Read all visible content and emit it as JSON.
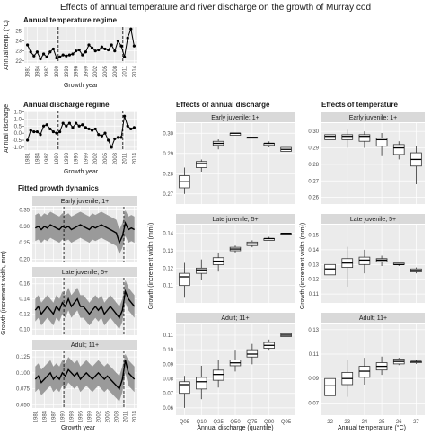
{
  "figure_title": "Effects of annual temperature and river discharge on the growth of Murray cod",
  "colors": {
    "panel_bg": "#ebebeb",
    "grid_major": "#ffffff",
    "grid_minor": "#f5f5f5",
    "strip_bg": "#d9d9d9",
    "ribbon": "#9a9a9a",
    "line": "#000000",
    "box_fill": "#ffffff",
    "box_line": "#333333"
  },
  "chart_data": [
    {
      "id": "temp",
      "type": "line",
      "title": "Annual temperature regime",
      "xlabel": "Growth year",
      "ylabel": "Annual temp. (°C)",
      "x_ticks": [
        "1981",
        "1984",
        "1987",
        "1990",
        "1993",
        "1996",
        "1999",
        "2002",
        "2005",
        "2008",
        "2011",
        "2014"
      ],
      "xlim": [
        1980,
        2015
      ],
      "y_ticks": [
        "22",
        "23",
        "24",
        "25"
      ],
      "ylim": [
        21.8,
        25.4
      ],
      "vlines": [
        1990.5,
        2010.5
      ],
      "x": [
        1981,
        1982,
        1983,
        1984,
        1985,
        1986,
        1987,
        1988,
        1989,
        1990,
        1991,
        1992,
        1993,
        1994,
        1995,
        1996,
        1997,
        1998,
        1999,
        2000,
        2001,
        2002,
        2003,
        2004,
        2005,
        2006,
        2007,
        2008,
        2009,
        2010,
        2011,
        2012,
        2013,
        2014
      ],
      "y": [
        23.6,
        22.9,
        22.5,
        22.9,
        22.2,
        22.7,
        22.4,
        22.9,
        23.2,
        22.3,
        22.4,
        22.6,
        22.5,
        22.6,
        22.7,
        23.0,
        23.1,
        22.6,
        22.9,
        23.6,
        23.3,
        23.0,
        23.1,
        23.4,
        23.2,
        23.1,
        23.6,
        23.0,
        24.0,
        23.5,
        22.4,
        24.3,
        25.2,
        23.5
      ]
    },
    {
      "id": "disch",
      "type": "line",
      "title": "Annual discharge regime",
      "xlabel": "Growth year",
      "ylabel": "Annual discharge",
      "x_ticks": [
        "1981",
        "1984",
        "1987",
        "1990",
        "1993",
        "1996",
        "1999",
        "2002",
        "2005",
        "2008",
        "2011",
        "2014"
      ],
      "xlim": [
        1980,
        2015
      ],
      "y_ticks": [
        "-1.0",
        "-0.5",
        "0.0",
        "0.5",
        "1.0",
        "1.5"
      ],
      "ylim": [
        -1.2,
        1.6
      ],
      "vlines": [
        1990.5,
        2010.5
      ],
      "x": [
        1981,
        1982,
        1983,
        1984,
        1985,
        1986,
        1987,
        1988,
        1989,
        1990,
        1991,
        1992,
        1993,
        1994,
        1995,
        1996,
        1997,
        1998,
        1999,
        2000,
        2001,
        2002,
        2003,
        2004,
        2005,
        2006,
        2007,
        2008,
        2009,
        2010,
        2011,
        2012,
        2013,
        2014
      ],
      "y": [
        -0.5,
        0.2,
        0.1,
        0.1,
        -0.1,
        0.5,
        0.6,
        0.3,
        0.1,
        0.0,
        0.1,
        0.7,
        0.5,
        0.7,
        0.4,
        0.7,
        0.5,
        0.6,
        0.4,
        0.3,
        0.2,
        0.3,
        -0.1,
        -0.2,
        0.0,
        -0.5,
        -1.0,
        -0.4,
        -0.3,
        -0.3,
        1.2,
        0.5,
        0.3,
        0.4
      ]
    },
    {
      "id": "fitted",
      "type": "line",
      "title": "Fitted growth dynamics",
      "xlabel": "Growth year",
      "ylabel": "Growth (increment width, mm)",
      "x_ticks": [
        "1981",
        "1984",
        "1987",
        "1990",
        "1993",
        "1996",
        "1999",
        "2002",
        "2005",
        "2008",
        "2011",
        "2014"
      ],
      "xlim": [
        1980,
        2015
      ],
      "vlines": [
        1990.5,
        2010.5
      ],
      "panels": [
        {
          "strip": "Early juvenile; 1+",
          "y_ticks": [
            "0.20",
            "0.25",
            "0.30",
            "0.35"
          ],
          "ylim": [
            0.19,
            0.36
          ],
          "mean": [
            0.295,
            0.3,
            0.29,
            0.3,
            0.295,
            0.305,
            0.3,
            0.295,
            0.29,
            0.3,
            0.295,
            0.3,
            0.29,
            0.295,
            0.3,
            0.305,
            0.3,
            0.295,
            0.29,
            0.3,
            0.295,
            0.3,
            0.305,
            0.3,
            0.295,
            0.29,
            0.285,
            0.28,
            0.25,
            0.27,
            0.31,
            0.29,
            0.295,
            0.29
          ],
          "lower": [
            0.255,
            0.26,
            0.25,
            0.26,
            0.255,
            0.265,
            0.26,
            0.255,
            0.25,
            0.26,
            0.255,
            0.26,
            0.25,
            0.255,
            0.26,
            0.265,
            0.26,
            0.255,
            0.25,
            0.26,
            0.255,
            0.26,
            0.265,
            0.26,
            0.255,
            0.25,
            0.245,
            0.24,
            0.215,
            0.235,
            0.27,
            0.25,
            0.255,
            0.25
          ],
          "upper": [
            0.335,
            0.34,
            0.33,
            0.34,
            0.335,
            0.345,
            0.34,
            0.335,
            0.33,
            0.34,
            0.335,
            0.34,
            0.33,
            0.335,
            0.34,
            0.345,
            0.34,
            0.335,
            0.33,
            0.34,
            0.335,
            0.34,
            0.345,
            0.34,
            0.335,
            0.33,
            0.325,
            0.32,
            0.29,
            0.31,
            0.35,
            0.33,
            0.335,
            0.33
          ]
        },
        {
          "strip": "Late juvenile; 5+",
          "y_ticks": [
            "0.10",
            "0.12",
            "0.14",
            "0.16"
          ],
          "ylim": [
            0.092,
            0.168
          ],
          "mean": [
            0.125,
            0.13,
            0.12,
            0.125,
            0.13,
            0.125,
            0.12,
            0.13,
            0.125,
            0.135,
            0.13,
            0.14,
            0.13,
            0.135,
            0.14,
            0.13,
            0.13,
            0.125,
            0.12,
            0.125,
            0.13,
            0.125,
            0.13,
            0.12,
            0.125,
            0.13,
            0.125,
            0.12,
            0.115,
            0.125,
            0.15,
            0.14,
            0.135,
            0.13
          ],
          "lower": [
            0.11,
            0.115,
            0.105,
            0.11,
            0.115,
            0.11,
            0.105,
            0.115,
            0.11,
            0.12,
            0.115,
            0.125,
            0.115,
            0.12,
            0.125,
            0.115,
            0.115,
            0.11,
            0.105,
            0.11,
            0.115,
            0.11,
            0.115,
            0.105,
            0.11,
            0.115,
            0.11,
            0.105,
            0.1,
            0.11,
            0.135,
            0.125,
            0.12,
            0.115
          ],
          "upper": [
            0.14,
            0.145,
            0.135,
            0.14,
            0.145,
            0.14,
            0.135,
            0.145,
            0.14,
            0.15,
            0.145,
            0.155,
            0.145,
            0.15,
            0.155,
            0.145,
            0.145,
            0.14,
            0.135,
            0.14,
            0.145,
            0.14,
            0.145,
            0.135,
            0.14,
            0.145,
            0.14,
            0.135,
            0.13,
            0.14,
            0.165,
            0.155,
            0.15,
            0.145
          ]
        },
        {
          "strip": "Adult; 11+",
          "y_ticks": [
            "0.050",
            "0.075",
            "0.100",
            "0.125"
          ],
          "ylim": [
            0.045,
            0.135
          ],
          "mean": [
            0.09,
            0.095,
            0.085,
            0.09,
            0.095,
            0.1,
            0.09,
            0.095,
            0.09,
            0.1,
            0.095,
            0.105,
            0.1,
            0.095,
            0.1,
            0.09,
            0.095,
            0.1,
            0.095,
            0.09,
            0.095,
            0.1,
            0.095,
            0.09,
            0.095,
            0.09,
            0.085,
            0.08,
            0.075,
            0.09,
            0.12,
            0.1,
            0.095,
            0.09
          ],
          "lower": [
            0.07,
            0.075,
            0.065,
            0.07,
            0.075,
            0.08,
            0.07,
            0.075,
            0.07,
            0.08,
            0.075,
            0.085,
            0.08,
            0.075,
            0.08,
            0.07,
            0.075,
            0.08,
            0.075,
            0.07,
            0.075,
            0.08,
            0.075,
            0.07,
            0.075,
            0.07,
            0.065,
            0.06,
            0.055,
            0.07,
            0.1,
            0.08,
            0.075,
            0.07
          ],
          "upper": [
            0.11,
            0.115,
            0.105,
            0.11,
            0.115,
            0.12,
            0.11,
            0.115,
            0.11,
            0.12,
            0.115,
            0.125,
            0.12,
            0.115,
            0.12,
            0.11,
            0.115,
            0.12,
            0.115,
            0.11,
            0.115,
            0.12,
            0.115,
            0.11,
            0.115,
            0.11,
            0.105,
            0.1,
            0.095,
            0.11,
            0.13,
            0.12,
            0.115,
            0.11
          ]
        }
      ]
    },
    {
      "id": "dischbox",
      "type": "box",
      "title": "Effects of annual discharge",
      "xlabel": "Annual discharge (quantile)",
      "ylabel": "Growth (increment width (mm))",
      "categories": [
        "Q05",
        "Q10",
        "Q25",
        "Q50",
        "Q75",
        "Q90",
        "Q95"
      ],
      "panels": [
        {
          "strip": "Early juvenile; 1+",
          "y_ticks": [
            "0.27",
            "0.28",
            "0.29",
            "0.30"
          ],
          "ylim": [
            0.265,
            0.305
          ],
          "boxes": [
            [
              0.27,
              0.273,
              0.276,
              0.279,
              0.283
            ],
            [
              0.281,
              0.283,
              0.285,
              0.286,
              0.287
            ],
            [
              0.292,
              0.294,
              0.295,
              0.296,
              0.297
            ],
            [
              0.299,
              0.299,
              0.3,
              0.3,
              0.3
            ],
            [
              0.298,
              0.298,
              0.298,
              0.298,
              0.298
            ],
            [
              0.293,
              0.294,
              0.295,
              0.295,
              0.296
            ],
            [
              0.288,
              0.291,
              0.292,
              0.293,
              0.294
            ]
          ]
        },
        {
          "strip": "Late juvenile; 5+",
          "y_ticks": [
            "0.11",
            "0.12",
            "0.13",
            "0.14"
          ],
          "ylim": [
            0.1,
            0.145
          ],
          "boxes": [
            [
              0.103,
              0.11,
              0.115,
              0.117,
              0.123
            ],
            [
              0.113,
              0.117,
              0.119,
              0.12,
              0.125
            ],
            [
              0.118,
              0.122,
              0.124,
              0.126,
              0.129
            ],
            [
              0.129,
              0.13,
              0.131,
              0.132,
              0.133
            ],
            [
              0.132,
              0.133,
              0.134,
              0.135,
              0.136
            ],
            [
              0.136,
              0.136,
              0.137,
              0.137,
              0.138
            ],
            [
              0.14,
              0.14,
              0.14,
              0.14,
              0.14
            ]
          ]
        },
        {
          "strip": "Adult; 11+",
          "y_ticks": [
            "0.06",
            "0.07",
            "0.08",
            "0.09",
            "0.10",
            "0.11"
          ],
          "ylim": [
            0.055,
            0.118
          ],
          "boxes": [
            [
              0.06,
              0.07,
              0.076,
              0.078,
              0.082
            ],
            [
              0.066,
              0.073,
              0.078,
              0.081,
              0.089
            ],
            [
              0.074,
              0.079,
              0.083,
              0.086,
              0.093
            ],
            [
              0.085,
              0.089,
              0.091,
              0.093,
              0.1
            ],
            [
              0.09,
              0.095,
              0.097,
              0.1,
              0.104
            ],
            [
              0.1,
              0.101,
              0.103,
              0.105,
              0.107
            ],
            [
              0.107,
              0.109,
              0.11,
              0.111,
              0.113
            ]
          ]
        }
      ]
    },
    {
      "id": "tempbox",
      "type": "box",
      "title": "Effects of temperature",
      "xlabel": "Annual temperature (°C)",
      "ylabel": "Growth (increment width (mm))",
      "categories": [
        "22",
        "23",
        "24",
        "25",
        "26",
        "27"
      ],
      "panels": [
        {
          "strip": "Early juvenile; 1+",
          "y_ticks": [
            "0.26",
            "0.27",
            "0.28",
            "0.29",
            "0.30"
          ],
          "ylim": [
            0.256,
            0.305
          ],
          "boxes": [
            [
              0.29,
              0.295,
              0.297,
              0.298,
              0.301
            ],
            [
              0.29,
              0.295,
              0.297,
              0.298,
              0.301
            ],
            [
              0.29,
              0.294,
              0.297,
              0.298,
              0.3
            ],
            [
              0.285,
              0.291,
              0.295,
              0.296,
              0.299
            ],
            [
              0.283,
              0.286,
              0.29,
              0.292,
              0.294
            ],
            [
              0.268,
              0.279,
              0.283,
              0.287,
              0.291
            ]
          ]
        },
        {
          "strip": "Late juvenile; 5+",
          "y_ticks": [
            "0.11",
            "0.12",
            "0.13",
            "0.14",
            "0.15"
          ],
          "ylim": [
            0.104,
            0.157
          ],
          "boxes": [
            [
              0.113,
              0.123,
              0.127,
              0.13,
              0.14
            ],
            [
              0.115,
              0.128,
              0.131,
              0.134,
              0.142
            ],
            [
              0.124,
              0.13,
              0.133,
              0.135,
              0.14
            ],
            [
              0.129,
              0.132,
              0.133,
              0.134,
              0.136
            ],
            [
              0.129,
              0.13,
              0.13,
              0.131,
              0.131
            ],
            [
              0.124,
              0.125,
              0.126,
              0.127,
              0.128
            ]
          ]
        },
        {
          "strip": "Adult; 11+",
          "y_ticks": [
            "0.07",
            "0.09",
            "0.11",
            "0.13"
          ],
          "ylim": [
            0.06,
            0.135
          ],
          "boxes": [
            [
              0.065,
              0.076,
              0.084,
              0.09,
              0.1
            ],
            [
              0.075,
              0.085,
              0.09,
              0.095,
              0.105
            ],
            [
              0.085,
              0.091,
              0.096,
              0.1,
              0.107
            ],
            [
              0.093,
              0.097,
              0.1,
              0.103,
              0.108
            ],
            [
              0.101,
              0.102,
              0.104,
              0.106,
              0.107
            ],
            [
              0.102,
              0.103,
              0.104,
              0.104,
              0.105
            ]
          ]
        }
      ]
    }
  ]
}
